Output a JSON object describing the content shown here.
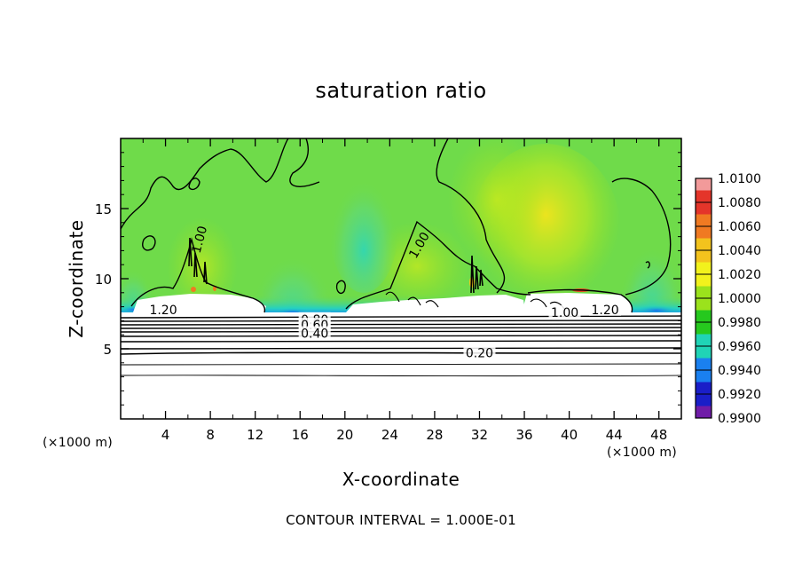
{
  "chart_data": {
    "type": "heatmap",
    "title": "saturation ratio",
    "xlabel": "X-coordinate",
    "ylabel": "Z-coordinate",
    "x_unit": "(×1000 m)",
    "xlim": [
      0,
      50
    ],
    "ylim": [
      0,
      20
    ],
    "x_ticks": [
      4,
      8,
      12,
      16,
      20,
      24,
      28,
      32,
      36,
      40,
      44,
      48
    ],
    "y_ticks": [
      5,
      10,
      15
    ],
    "colorbar": {
      "range": [
        0.99,
        1.01
      ],
      "tick_labels": [
        "1.0100",
        "1.0080",
        "1.0060",
        "1.0040",
        "1.0020",
        "1.0000",
        "0.9980",
        "0.9960",
        "0.9940",
        "0.9920",
        "0.9900"
      ],
      "colors": [
        "#f29a9a",
        "#e4352a",
        "#f07a22",
        "#f3c31d",
        "#f2f21c",
        "#9be21c",
        "#26c81e",
        "#20d4b6",
        "#1a80f0",
        "#1a1ec8",
        "#701ca8"
      ]
    },
    "contour_interval_label": "CONTOUR INTERVAL = 1.000E-01",
    "contour_labels": [
      "1.20",
      "1.00",
      "1.00",
      "1.00",
      "1.20",
      "0.80",
      "0.60",
      "0.40",
      "0.20"
    ],
    "field_notes": {
      "saturated_layer_top_z": 7.5,
      "cloud_regions_x": [
        [
          2.5,
          13
        ],
        [
          20.5,
          36
        ],
        [
          36,
          45
        ]
      ],
      "background_value": 1.0
    }
  }
}
